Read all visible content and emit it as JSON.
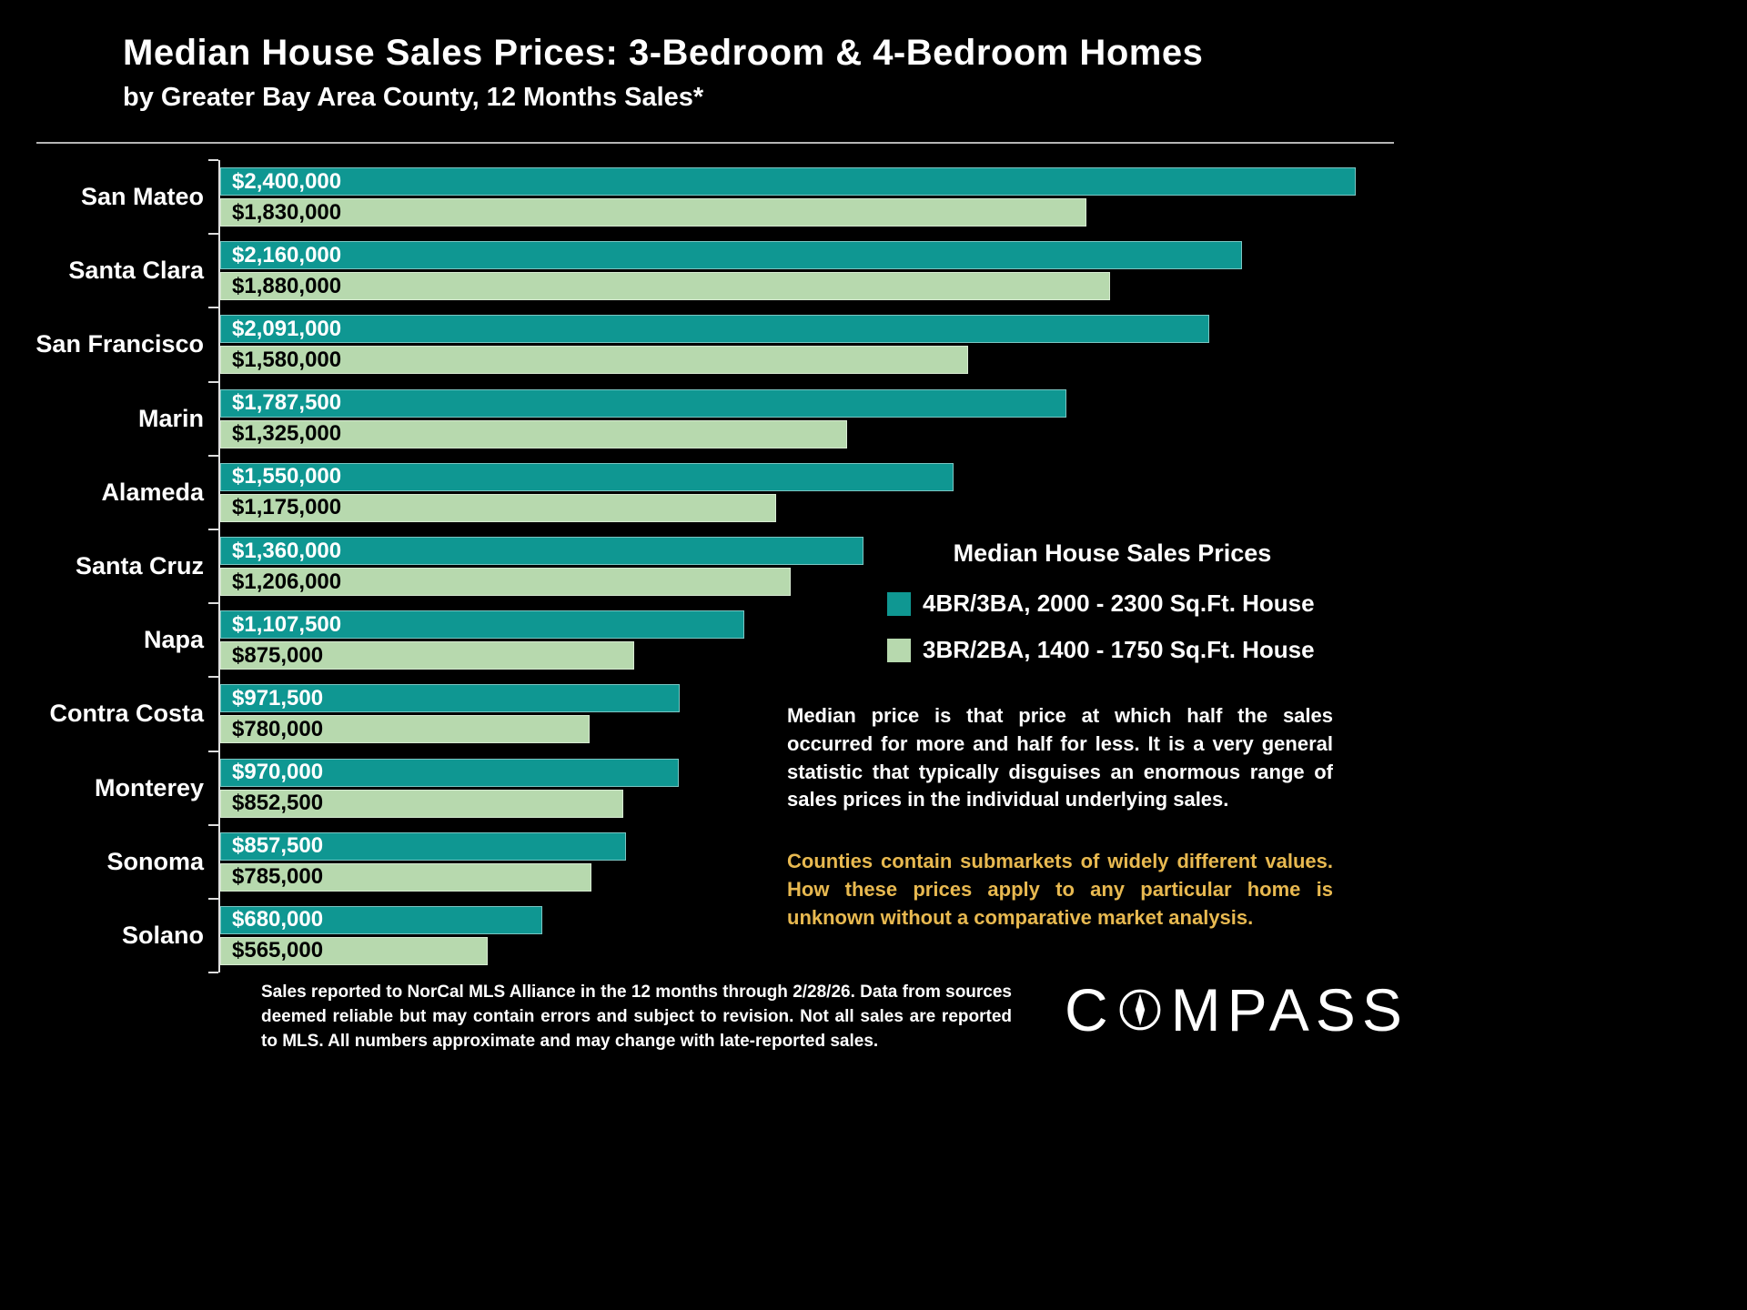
{
  "title": "Median House Sales Prices: 3-Bedroom & 4-Bedroom Homes",
  "subtitle": "by Greater Bay Area County, 12 Months Sales*",
  "colors": {
    "background": "#000000",
    "series_4br": "#0f9792",
    "series_3br": "#b7d9ae",
    "gold": "#e8b950"
  },
  "chart_data": {
    "type": "bar",
    "orientation": "horizontal",
    "title": "Median House Sales Prices: 3-Bedroom & 4-Bedroom Homes",
    "subtitle": "by Greater Bay Area County, 12 Months Sales*",
    "categories": [
      "San Mateo",
      "Santa Clara",
      "San Francisco",
      "Marin",
      "Alameda",
      "Santa Cruz",
      "Napa",
      "Contra Costa",
      "Monterey",
      "Sonoma",
      "Solano"
    ],
    "series": [
      {
        "name": "4BR/3BA, 2000 - 2300 Sq.Ft. House",
        "values": [
          2400000,
          2160000,
          2091000,
          1787500,
          1550000,
          1360000,
          1107500,
          971500,
          970000,
          857500,
          680000
        ],
        "labels": [
          "$2,400,000",
          "$2,160,000",
          "$2,091,000",
          "$1,787,500",
          "$1,550,000",
          "$1,360,000",
          "$1,107,500",
          "$971,500",
          "$970,000",
          "$857,500",
          "$680,000"
        ]
      },
      {
        "name": "3BR/2BA, 1400 - 1750 Sq.Ft. House",
        "values": [
          1830000,
          1880000,
          1580000,
          1325000,
          1175000,
          1206000,
          875000,
          780000,
          852500,
          785000,
          565000
        ],
        "labels": [
          "$1,830,000",
          "$1,880,000",
          "$1,580,000",
          "$1,325,000",
          "$1,175,000",
          "$1,206,000",
          "$875,000",
          "$780,000",
          "$852,500",
          "$785,000",
          "$565,000"
        ]
      }
    ],
    "xlim": [
      0,
      2400000
    ],
    "grid": false,
    "legend_position": "right-middle"
  },
  "legend": {
    "title": "Median House Sales Prices",
    "items": [
      {
        "label": "4BR/3BA, 2000 - 2300 Sq.Ft. House"
      },
      {
        "label": "3BR/2BA, 1400 - 1750 Sq.Ft. House"
      }
    ]
  },
  "notes": {
    "white": "Median price is that price at which half the sales occurred for more and half for less. It is a very general statistic that typically disguises an enormous range of sales prices in the individual underlying sales.",
    "gold": "Counties contain submarkets of widely different values. How these prices apply to any particular home is unknown without a comparative market analysis."
  },
  "footer": "Sales reported to NorCal MLS Alliance in the 12 months through 2/28/26. Data from sources deemed reliable but may contain errors and subject to revision. Not all sales are reported to MLS. All numbers approximate and may change with late-reported sales.",
  "logo": {
    "left": "C",
    "right": "MPASS",
    "name": "COMPASS"
  }
}
